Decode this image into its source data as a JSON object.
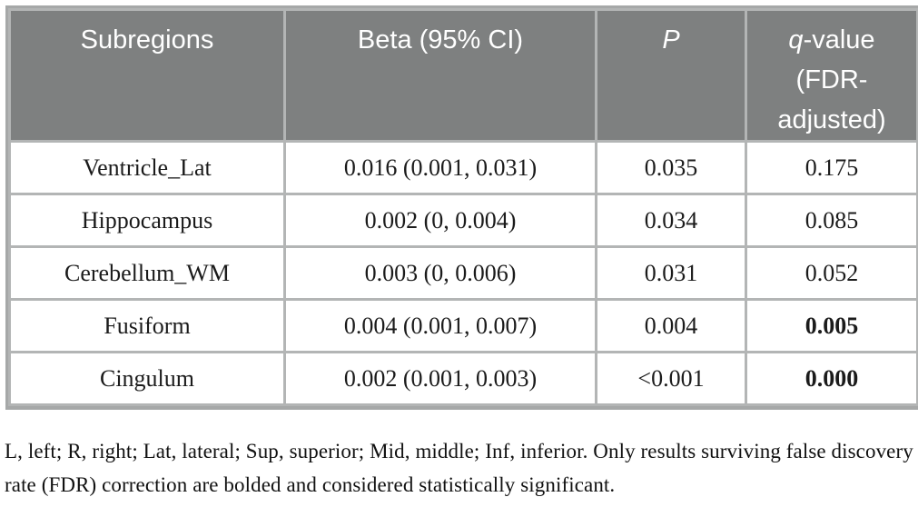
{
  "table": {
    "headers": {
      "subregions": "Subregions",
      "beta": "Beta (95% CI)",
      "p": "P",
      "q_italic_part": "q",
      "q_rest": "-value (FDR-adjusted)"
    },
    "rows": [
      {
        "subregion": "Ventricle_Lat",
        "beta": "0.016 (0.001, 0.031)",
        "p": "0.035",
        "q": "0.175",
        "q_bold": false
      },
      {
        "subregion": "Hippocampus",
        "beta": "0.002 (0, 0.004)",
        "p": "0.034",
        "q": "0.085",
        "q_bold": false
      },
      {
        "subregion": "Cerebellum_WM",
        "beta": "0.003 (0, 0.006)",
        "p": "0.031",
        "q": "0.052",
        "q_bold": false
      },
      {
        "subregion": "Fusiform",
        "beta": "0.004 (0.001, 0.007)",
        "p": "0.004",
        "q": "0.005",
        "q_bold": true
      },
      {
        "subregion": "Cingulum",
        "beta": "0.002 (0.001, 0.003)",
        "p": "<0.001",
        "q": "0.000",
        "q_bold": true
      }
    ],
    "footnote": "L, left; R, right; Lat, lateral; Sup, superior; Mid, middle; Inf, inferior. Only results surviving false discovery rate (FDR) correction are bolded and considered statistically significant."
  },
  "colors": {
    "header_bg": "#7e8080",
    "header_text": "#ffffff",
    "grid": "#b3b5b5",
    "outer_border": "#a6a8a8",
    "body_text": "#1b1b1b"
  }
}
